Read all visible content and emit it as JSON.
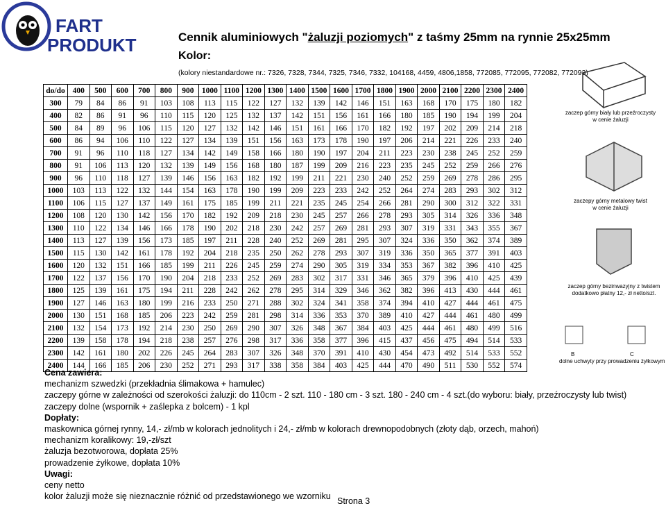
{
  "logo": {
    "line1": "FART",
    "line2": "PRODUKT"
  },
  "header": {
    "title": [
      "Cennik aluminiowych \"",
      "żaluzji poziomych",
      "\" z taśmy 25mm na rynnie 25x25mm"
    ],
    "subtitle": "Kolor:",
    "colors_note": "(kolory niestandardowe nr.: 7326, 7328, 7344, 7325, 7346, 7332, 104168, 4459, 4806,1858, 772085, 772095, 772082, 772093)"
  },
  "table": {
    "corner": "do/do",
    "columns": [
      400,
      500,
      600,
      700,
      800,
      900,
      1000,
      1100,
      1200,
      1300,
      1400,
      1500,
      1600,
      1700,
      1800,
      1900,
      2000,
      2100,
      2200,
      2300,
      2400
    ],
    "rows": [
      {
        "label": 300,
        "values": [
          79,
          84,
          86,
          91,
          103,
          108,
          113,
          115,
          122,
          127,
          132,
          139,
          142,
          146,
          151,
          163,
          168,
          170,
          175,
          180,
          182
        ]
      },
      {
        "label": 400,
        "values": [
          82,
          86,
          91,
          96,
          110,
          115,
          120,
          125,
          132,
          137,
          142,
          151,
          156,
          161,
          166,
          180,
          185,
          190,
          194,
          199,
          204
        ]
      },
      {
        "label": 500,
        "values": [
          84,
          89,
          96,
          106,
          115,
          120,
          127,
          132,
          142,
          146,
          151,
          161,
          166,
          170,
          182,
          192,
          197,
          202,
          209,
          214,
          218
        ]
      },
      {
        "label": 600,
        "values": [
          86,
          94,
          106,
          110,
          122,
          127,
          134,
          139,
          151,
          156,
          163,
          173,
          178,
          190,
          197,
          206,
          214,
          221,
          226,
          233,
          240
        ]
      },
      {
        "label": 700,
        "values": [
          91,
          96,
          110,
          118,
          127,
          134,
          142,
          149,
          158,
          166,
          180,
          190,
          197,
          204,
          211,
          223,
          230,
          238,
          245,
          252,
          259
        ]
      },
      {
        "label": 800,
        "values": [
          91,
          106,
          113,
          120,
          132,
          139,
          149,
          156,
          168,
          180,
          187,
          199,
          209,
          216,
          223,
          235,
          245,
          252,
          259,
          266,
          276
        ]
      },
      {
        "label": 900,
        "values": [
          96,
          110,
          118,
          127,
          139,
          146,
          156,
          163,
          182,
          192,
          199,
          211,
          221,
          230,
          240,
          252,
          259,
          269,
          278,
          286,
          295
        ]
      },
      {
        "label": 1000,
        "values": [
          103,
          113,
          122,
          132,
          144,
          154,
          163,
          178,
          190,
          199,
          209,
          223,
          233,
          242,
          252,
          264,
          274,
          283,
          293,
          302,
          312
        ]
      },
      {
        "label": 1100,
        "values": [
          106,
          115,
          127,
          137,
          149,
          161,
          175,
          185,
          199,
          211,
          221,
          235,
          245,
          254,
          266,
          281,
          290,
          300,
          312,
          322,
          331
        ]
      },
      {
        "label": 1200,
        "values": [
          108,
          120,
          130,
          142,
          156,
          170,
          182,
          192,
          209,
          218,
          230,
          245,
          257,
          266,
          278,
          293,
          305,
          314,
          326,
          336,
          348
        ]
      },
      {
        "label": 1300,
        "values": [
          110,
          122,
          134,
          146,
          166,
          178,
          190,
          202,
          218,
          230,
          242,
          257,
          269,
          281,
          293,
          307,
          319,
          331,
          343,
          355,
          367
        ]
      },
      {
        "label": 1400,
        "values": [
          113,
          127,
          139,
          156,
          173,
          185,
          197,
          211,
          228,
          240,
          252,
          269,
          281,
          295,
          307,
          324,
          336,
          350,
          362,
          374,
          389
        ]
      },
      {
        "label": 1500,
        "values": [
          115,
          130,
          142,
          161,
          178,
          192,
          204,
          218,
          235,
          250,
          262,
          278,
          293,
          307,
          319,
          336,
          350,
          365,
          377,
          391,
          403
        ]
      },
      {
        "label": 1600,
        "values": [
          120,
          132,
          151,
          166,
          185,
          199,
          211,
          226,
          245,
          259,
          274,
          290,
          305,
          319,
          334,
          353,
          367,
          382,
          396,
          410,
          425
        ]
      },
      {
        "label": 1700,
        "values": [
          122,
          137,
          156,
          170,
          190,
          204,
          218,
          233,
          252,
          269,
          283,
          302,
          317,
          331,
          346,
          365,
          379,
          396,
          410,
          425,
          439
        ]
      },
      {
        "label": 1800,
        "values": [
          125,
          139,
          161,
          175,
          194,
          211,
          228,
          242,
          262,
          278,
          295,
          314,
          329,
          346,
          362,
          382,
          396,
          413,
          430,
          444,
          461
        ]
      },
      {
        "label": 1900,
        "values": [
          127,
          146,
          163,
          180,
          199,
          216,
          233,
          250,
          271,
          288,
          302,
          324,
          341,
          358,
          374,
          394,
          410,
          427,
          444,
          461,
          475
        ]
      },
      {
        "label": 2000,
        "values": [
          130,
          151,
          168,
          185,
          206,
          223,
          242,
          259,
          281,
          298,
          314,
          336,
          353,
          370,
          389,
          410,
          427,
          444,
          461,
          480,
          499
        ]
      },
      {
        "label": 2100,
        "values": [
          132,
          154,
          173,
          192,
          214,
          230,
          250,
          269,
          290,
          307,
          326,
          348,
          367,
          384,
          403,
          425,
          444,
          461,
          480,
          499,
          516
        ]
      },
      {
        "label": 2200,
        "values": [
          139,
          158,
          178,
          194,
          218,
          238,
          257,
          276,
          298,
          317,
          336,
          358,
          377,
          396,
          415,
          437,
          456,
          475,
          494,
          514,
          533
        ]
      },
      {
        "label": 2300,
        "values": [
          142,
          161,
          180,
          202,
          226,
          245,
          264,
          283,
          307,
          326,
          348,
          370,
          391,
          410,
          430,
          454,
          473,
          492,
          514,
          533,
          552
        ]
      },
      {
        "label": 2400,
        "values": [
          144,
          166,
          185,
          206,
          230,
          252,
          271,
          293,
          317,
          338,
          358,
          384,
          403,
          425,
          444,
          470,
          490,
          511,
          530,
          552,
          574
        ]
      }
    ]
  },
  "captions": {
    "white": [
      "zaczep górny biały lub przeźroczysty",
      "w cenie żaluzji"
    ],
    "twist": [
      "zaczepy górny metalowy twist",
      "w cenie żaluzji"
    ],
    "noninvasive": [
      "zaczep górny bezinwazyjny z twistem",
      "dodatkowo płatny 12,- zł netto/szt."
    ],
    "b": "B",
    "c": "C",
    "bottom": "dolne uchwyty  przy prowadzeniu żyłkowym"
  },
  "notes": [
    {
      "text": "Cena zawiera:",
      "bold": true
    },
    {
      "text": "mechanizm szwedzki (przekładnia ślimakowa + hamulec)",
      "bold": false
    },
    {
      "text": "zaczepy górne w zależności od szerokości żaluzji: do 110cm - 2 szt.  110 - 180 cm - 3 szt.      180 - 240 cm  - 4 szt.(do wyboru: biały, przeźroczysty lub twist)",
      "bold": false
    },
    {
      "text": "zaczepy dolne (wspornik + zaślepka z bolcem) - 1 kpl",
      "bold": false
    },
    {
      "text": "Dopłaty:",
      "bold": true
    },
    {
      "text": "maskownica górnej rynny, 14,- zł/mb w kolorach jednolitych  i 24,- zł/mb w kolorach drewnopodobnych (złoty dąb, orzech, mahoń)",
      "bold": false
    },
    {
      "text": "mechanizm koralikowy: 19,-zł/szt",
      "bold": false
    },
    {
      "text": "żaluzja bezotworowa, dopłata 25%",
      "bold": false
    },
    {
      "text": "prowadzenie żyłkowe, dopłata 10%",
      "bold": false
    },
    {
      "text": "Uwagi:",
      "bold": true
    },
    {
      "text": "ceny netto",
      "bold": false
    },
    {
      "text": "kolor żaluzji może się nieznacznie różnić od przedstawionego we wzorniku",
      "bold": false
    }
  ],
  "footer": {
    "page": "Strona 3"
  }
}
